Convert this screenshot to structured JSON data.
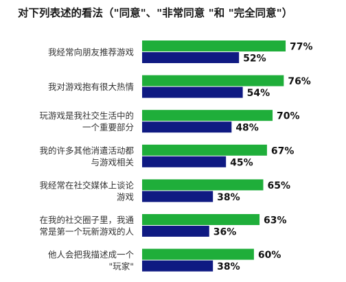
{
  "chart_data": {
    "type": "bar",
    "orientation": "horizontal",
    "title": "对下列表述的看法（\"同意\"、\"非常同意 \"和 \"完全同意\"）",
    "categories": [
      [
        "我经常向朋友推荐游戏"
      ],
      [
        "我对游戏抱有很大热情"
      ],
      [
        "玩游戏是我社交生活中的",
        "一个重要部分"
      ],
      [
        "我的许多其他消遣活动都",
        "与游戏相关"
      ],
      [
        "我经常在社交媒体上谈论",
        "游戏"
      ],
      [
        "在我的社交圈子里，我通",
        "常是第一个玩新游戏的人"
      ],
      [
        "他人会把我描述成一个",
        "\"玩家\""
      ]
    ],
    "series": [
      {
        "values": [
          77,
          76,
          70,
          67,
          65,
          63,
          60
        ],
        "color": "#1fae3a"
      },
      {
        "values": [
          52,
          54,
          48,
          45,
          38,
          36,
          38
        ],
        "color": "#0f1a82"
      }
    ],
    "value_suffix": "%",
    "xlim": [
      0,
      100
    ],
    "grid": false,
    "legend": "none"
  }
}
